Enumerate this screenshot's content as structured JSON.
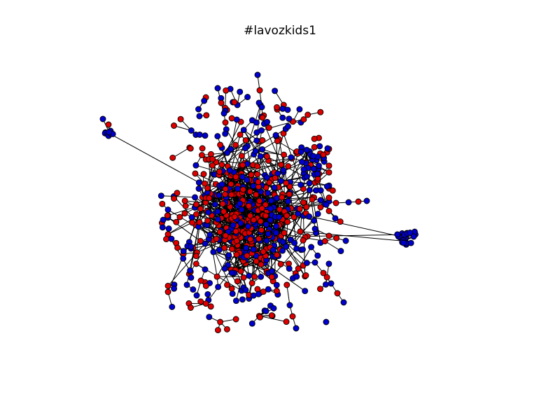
{
  "figure": {
    "title": "#lavozkids1"
  },
  "graph": {
    "node_colors": [
      "#0000cc",
      "#dd0000"
    ],
    "node_stroke": "#000000",
    "edge_color": "#000000",
    "background": "#ffffff"
  }
}
